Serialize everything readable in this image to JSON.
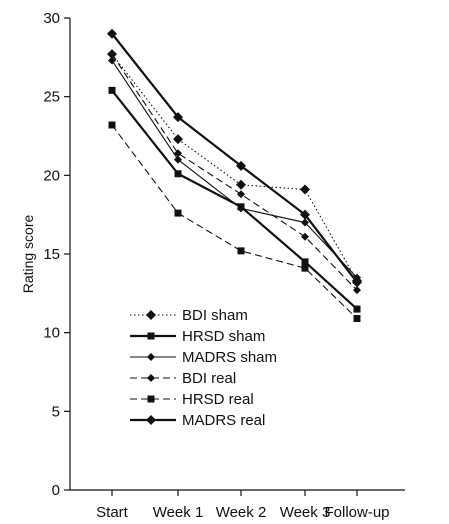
{
  "chart_data": {
    "type": "line",
    "ylabel": "Rating score",
    "xlabel": "",
    "categories": [
      "Start",
      "Week 1",
      "Week 2",
      "Week 3",
      "Follow-up"
    ],
    "ylim": [
      0,
      30
    ],
    "yticks": [
      0,
      5,
      10,
      15,
      20,
      25,
      30
    ],
    "legend_position": "lower-left",
    "series": [
      {
        "name": "BDI sham",
        "values": [
          27.7,
          22.3,
          19.4,
          19.1,
          13.3
        ],
        "marker": "diamond",
        "dash": "dotted",
        "width": "thin"
      },
      {
        "name": "HRSD sham",
        "values": [
          25.4,
          20.1,
          18.0,
          14.5,
          11.5
        ],
        "marker": "square",
        "dash": "solid",
        "width": "thick"
      },
      {
        "name": "MADRS sham",
        "values": [
          27.3,
          21.0,
          17.9,
          17.0,
          13.5
        ],
        "marker": "diamond-small",
        "dash": "solid",
        "width": "thin"
      },
      {
        "name": "BDI real",
        "values": [
          27.7,
          21.4,
          18.8,
          16.1,
          12.7
        ],
        "marker": "diamond-small",
        "dash": "dashed",
        "width": "thin"
      },
      {
        "name": "HRSD real",
        "values": [
          23.2,
          17.6,
          15.2,
          14.1,
          10.9
        ],
        "marker": "square",
        "dash": "dashed",
        "width": "thin"
      },
      {
        "name": "MADRS real",
        "values": [
          29.0,
          23.7,
          20.6,
          17.5,
          13.2
        ],
        "marker": "diamond",
        "dash": "solid",
        "width": "thick"
      }
    ],
    "color": "#111111"
  }
}
